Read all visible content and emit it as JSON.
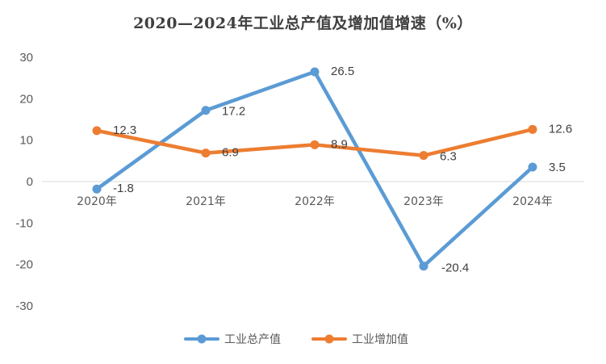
{
  "chart_data": {
    "type": "line",
    "title": "2020—2024年工业总产值及增加值增速（%）",
    "xlabel": "",
    "ylabel": "",
    "categories": [
      "2020年",
      "2021年",
      "2022年",
      "2023年",
      "2024年"
    ],
    "series": [
      {
        "name": "工业总产值",
        "color": "#5B9BD5",
        "values": [
          -1.8,
          17.2,
          26.5,
          -20.4,
          3.5
        ]
      },
      {
        "name": "工业增加值",
        "color": "#ED7D31",
        "values": [
          12.3,
          6.9,
          8.9,
          6.3,
          12.6
        ]
      }
    ],
    "ylim": [
      -30,
      30
    ],
    "yticks": [
      30,
      20,
      10,
      0,
      -10,
      -20,
      -30
    ],
    "grid": false,
    "legend": "bottom",
    "data_labels": true
  }
}
